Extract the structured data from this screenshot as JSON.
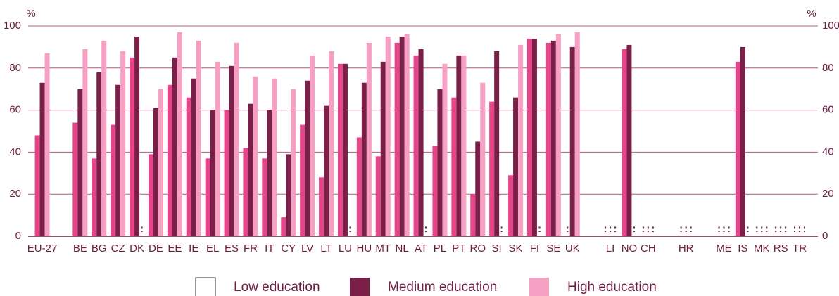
{
  "chart_data": {
    "type": "bar",
    "y_label": "%",
    "missing_marker": ":",
    "categories": [
      "EU-27",
      null,
      "BE",
      "BG",
      "CZ",
      "DK",
      "DE",
      "EE",
      "IE",
      "EL",
      "ES",
      "FR",
      "IT",
      "CY",
      "LV",
      "LT",
      "LU",
      "HU",
      "MT",
      "NL",
      "AT",
      "PL",
      "PT",
      "RO",
      "SI",
      "SK",
      "FI",
      "SE",
      "UK",
      null,
      "LI",
      "NO",
      "CH",
      null,
      "HR",
      null,
      "ME",
      "IS",
      "MK",
      "RS",
      "TR"
    ],
    "series": [
      {
        "name": "Low education",
        "color": "#e5468a",
        "values": [
          48,
          null,
          54,
          37,
          53,
          85,
          39,
          72,
          66,
          37,
          60,
          42,
          37,
          9,
          53,
          28,
          82,
          47,
          38,
          92,
          86,
          43,
          66,
          20,
          64,
          29,
          94,
          92,
          null,
          null,
          null,
          89,
          null,
          null,
          null,
          null,
          null,
          83,
          null,
          null,
          null
        ]
      },
      {
        "name": "Medium education",
        "color": "#7a1f48",
        "values": [
          73,
          null,
          70,
          78,
          72,
          95,
          61,
          85,
          75,
          60,
          81,
          63,
          60,
          39,
          74,
          62,
          82,
          73,
          83,
          95,
          89,
          70,
          86,
          45,
          88,
          66,
          94,
          93,
          90,
          null,
          null,
          91,
          null,
          null,
          null,
          null,
          null,
          90,
          null,
          null,
          null
        ]
      },
      {
        "name": "High education",
        "color": "#f6a0c3",
        "values": [
          87,
          null,
          89,
          93,
          88,
          null,
          70,
          97,
          93,
          83,
          92,
          76,
          75,
          70,
          86,
          88,
          null,
          92,
          95,
          96,
          null,
          82,
          86,
          73,
          null,
          91,
          null,
          96,
          97,
          null,
          null,
          null,
          null,
          null,
          null,
          null,
          null,
          null,
          null,
          null,
          null
        ]
      }
    ],
    "ylim": [
      0,
      100
    ],
    "yticks": [
      0,
      20,
      40,
      60,
      80,
      100
    ],
    "grid": true,
    "legend": "bottom"
  }
}
